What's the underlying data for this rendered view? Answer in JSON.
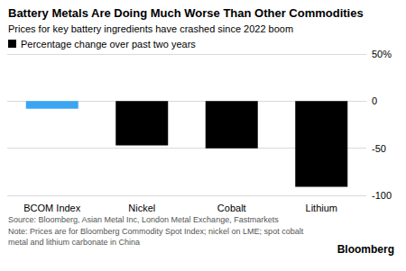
{
  "chart_data": {
    "type": "bar",
    "title": "Battery Metals Are Doing Much Worse Than Other Commodities",
    "subtitle": "Prices for key battery ingredients have crashed since 2022 boom",
    "categories": [
      "BCOM Index",
      "Nickel",
      "Cobalt",
      "Lithium"
    ],
    "series": [
      {
        "name": "Percentage change over past two years",
        "color": "#000000",
        "values": [
          -8,
          -47,
          -50,
          -91
        ]
      }
    ],
    "colors": [
      "#3ba5f2",
      "#000000",
      "#000000",
      "#000000"
    ],
    "ylim": [
      -100,
      50
    ],
    "yticks": [
      -100,
      -50,
      0,
      {
        "value": 50,
        "label": "50%"
      }
    ],
    "grid": true,
    "legend": "upper left",
    "source": "Source: Bloomberg, Asian Metal Inc, London Metal Exchange, Fastmarkets",
    "note": "Note: Prices are for Bloomberg Commodity Spot Index; nickel on LME; spot cobalt metal and lithium carbonate in China",
    "credit": "Bloomberg"
  }
}
